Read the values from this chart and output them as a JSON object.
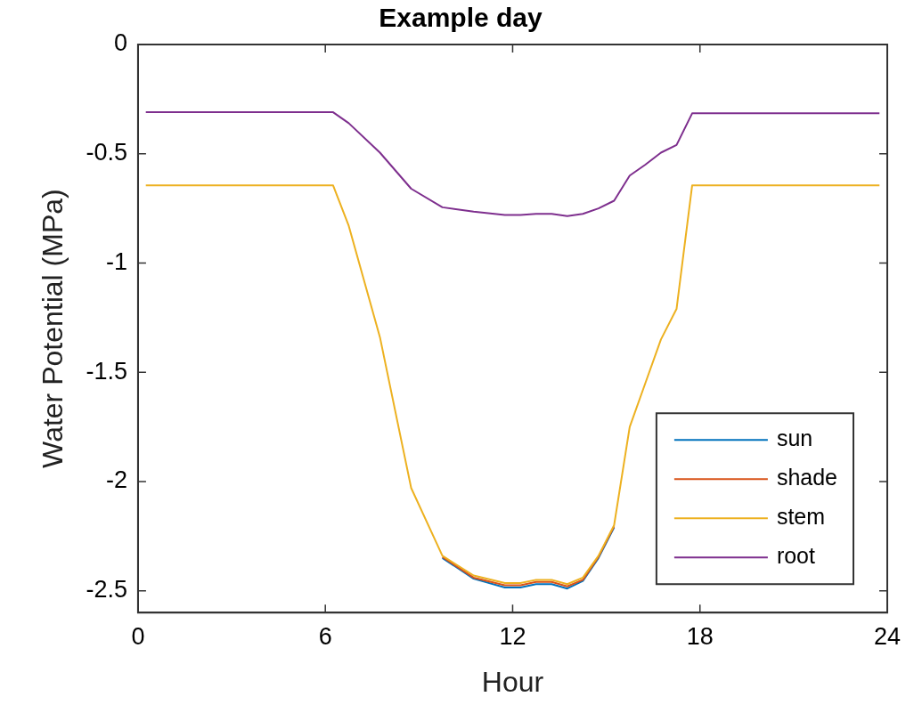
{
  "chart_data": {
    "type": "line",
    "title": "Example day",
    "xlabel": "Hour",
    "ylabel": "Water Potential (MPa)",
    "x": [
      0.25,
      6.25,
      6.75,
      7.75,
      8.75,
      9.75,
      10.75,
      11.75,
      12.25,
      12.75,
      13.25,
      13.75,
      14.25,
      14.75,
      15.25,
      15.75,
      16.25,
      16.75,
      17.25,
      17.75,
      23.75
    ],
    "series": [
      {
        "name": "sun",
        "color": "#0072bd",
        "values": [
          null,
          null,
          null,
          null,
          null,
          -2.35,
          -2.445,
          -2.485,
          -2.485,
          -2.47,
          -2.47,
          -2.49,
          -2.455,
          -2.35,
          -2.21,
          null,
          null,
          null,
          null,
          null,
          null
        ]
      },
      {
        "name": "shade",
        "color": "#d95319",
        "values": [
          null,
          null,
          null,
          null,
          null,
          -2.345,
          -2.44,
          -2.475,
          -2.475,
          -2.46,
          -2.46,
          -2.48,
          -2.45,
          -2.345,
          -2.205,
          null,
          null,
          null,
          null,
          null,
          null
        ]
      },
      {
        "name": "stem",
        "color": "#edb120",
        "values": [
          -0.645,
          -0.645,
          -0.83,
          -1.34,
          -2.03,
          -2.34,
          -2.43,
          -2.465,
          -2.465,
          -2.45,
          -2.45,
          -2.47,
          -2.44,
          -2.34,
          -2.2,
          -1.75,
          -1.55,
          -1.35,
          -1.21,
          -0.645,
          -0.645
        ]
      },
      {
        "name": "root",
        "color": "#7e2f8e",
        "values": [
          -0.31,
          -0.31,
          -0.36,
          -0.495,
          -0.66,
          -0.745,
          -0.765,
          -0.78,
          -0.78,
          -0.775,
          -0.775,
          -0.785,
          -0.775,
          -0.75,
          -0.715,
          -0.6,
          -0.55,
          -0.495,
          -0.46,
          -0.315,
          -0.315
        ]
      }
    ],
    "xlim": [
      0,
      24
    ],
    "xticks": [
      0,
      6,
      12,
      18,
      24
    ],
    "ylim": [
      -2.6,
      0
    ],
    "yticks": [
      -2.5,
      -2,
      -1.5,
      -1,
      -0.5,
      0
    ],
    "grid": false,
    "legend": "bottom right",
    "marker": "none",
    "line_style": "solid"
  }
}
